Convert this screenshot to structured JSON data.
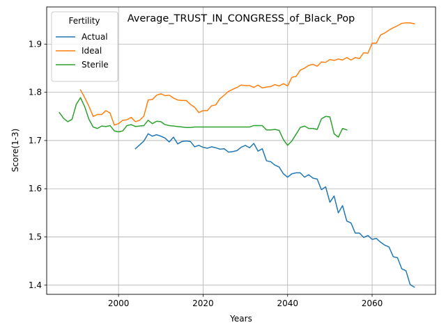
{
  "chart_data": {
    "type": "line",
    "title": "Average_TRUST_IN_CONGRESS_of_Black_Pop",
    "xlabel": "Years",
    "ylabel": "Score(1-3)",
    "xlim": [
      1983,
      2075
    ],
    "ylim": [
      1.381,
      1.977
    ],
    "xticks": [
      2000,
      2020,
      2040,
      2060
    ],
    "yticks": [
      1.4,
      1.5,
      1.6,
      1.7,
      1.8,
      1.9
    ],
    "grid": true,
    "legend": {
      "title": "Fertility",
      "placement": "top-left"
    },
    "series": [
      {
        "name": "Actual",
        "color": "#1f77b4",
        "points": [
          [
            2004,
            1.683
          ],
          [
            2005,
            1.691
          ],
          [
            2006,
            1.699
          ],
          [
            2007,
            1.714
          ],
          [
            2008,
            1.709
          ],
          [
            2009,
            1.712
          ],
          [
            2010,
            1.709
          ],
          [
            2011,
            1.705
          ],
          [
            2012,
            1.697
          ],
          [
            2013,
            1.707
          ],
          [
            2014,
            1.693
          ],
          [
            2015,
            1.698
          ],
          [
            2016,
            1.699
          ],
          [
            2017,
            1.698
          ],
          [
            2018,
            1.687
          ],
          [
            2019,
            1.69
          ],
          [
            2020,
            1.686
          ],
          [
            2021,
            1.684
          ],
          [
            2022,
            1.687
          ],
          [
            2023,
            1.685
          ],
          [
            2024,
            1.682
          ],
          [
            2025,
            1.683
          ],
          [
            2026,
            1.676
          ],
          [
            2027,
            1.677
          ],
          [
            2028,
            1.679
          ],
          [
            2029,
            1.686
          ],
          [
            2030,
            1.69
          ],
          [
            2031,
            1.685
          ],
          [
            2032,
            1.694
          ],
          [
            2033,
            1.678
          ],
          [
            2034,
            1.683
          ],
          [
            2035,
            1.658
          ],
          [
            2036,
            1.656
          ],
          [
            2037,
            1.649
          ],
          [
            2038,
            1.645
          ],
          [
            2039,
            1.631
          ],
          [
            2040,
            1.624
          ],
          [
            2041,
            1.631
          ],
          [
            2042,
            1.633
          ],
          [
            2043,
            1.633
          ],
          [
            2044,
            1.624
          ],
          [
            2045,
            1.629
          ],
          [
            2046,
            1.622
          ],
          [
            2047,
            1.62
          ],
          [
            2048,
            1.598
          ],
          [
            2049,
            1.604
          ],
          [
            2050,
            1.572
          ],
          [
            2051,
            1.585
          ],
          [
            2052,
            1.55
          ],
          [
            2053,
            1.565
          ],
          [
            2054,
            1.533
          ],
          [
            2055,
            1.529
          ],
          [
            2056,
            1.508
          ],
          [
            2057,
            1.508
          ],
          [
            2058,
            1.499
          ],
          [
            2059,
            1.503
          ],
          [
            2060,
            1.495
          ],
          [
            2061,
            1.497
          ],
          [
            2062,
            1.489
          ],
          [
            2063,
            1.483
          ],
          [
            2064,
            1.479
          ],
          [
            2065,
            1.459
          ],
          [
            2066,
            1.457
          ],
          [
            2067,
            1.434
          ],
          [
            2068,
            1.43
          ],
          [
            2069,
            1.401
          ],
          [
            2070,
            1.396
          ]
        ]
      },
      {
        "name": "Ideal",
        "color": "#ff7f0e",
        "points": [
          [
            1991,
            1.805
          ],
          [
            1992,
            1.789
          ],
          [
            1993,
            1.771
          ],
          [
            1994,
            1.75
          ],
          [
            1995,
            1.754
          ],
          [
            1996,
            1.754
          ],
          [
            1997,
            1.762
          ],
          [
            1998,
            1.757
          ],
          [
            1999,
            1.732
          ],
          [
            2000,
            1.735
          ],
          [
            2001,
            1.742
          ],
          [
            2002,
            1.743
          ],
          [
            2003,
            1.748
          ],
          [
            2004,
            1.739
          ],
          [
            2005,
            1.742
          ],
          [
            2006,
            1.751
          ],
          [
            2007,
            1.784
          ],
          [
            2008,
            1.785
          ],
          [
            2009,
            1.794
          ],
          [
            2010,
            1.797
          ],
          [
            2011,
            1.793
          ],
          [
            2012,
            1.794
          ],
          [
            2013,
            1.788
          ],
          [
            2014,
            1.784
          ],
          [
            2015,
            1.783
          ],
          [
            2016,
            1.783
          ],
          [
            2017,
            1.775
          ],
          [
            2018,
            1.769
          ],
          [
            2019,
            1.758
          ],
          [
            2020,
            1.762
          ],
          [
            2021,
            1.762
          ],
          [
            2022,
            1.772
          ],
          [
            2023,
            1.774
          ],
          [
            2024,
            1.787
          ],
          [
            2025,
            1.794
          ],
          [
            2026,
            1.802
          ],
          [
            2027,
            1.806
          ],
          [
            2028,
            1.81
          ],
          [
            2029,
            1.815
          ],
          [
            2030,
            1.814
          ],
          [
            2031,
            1.814
          ],
          [
            2032,
            1.81
          ],
          [
            2033,
            1.815
          ],
          [
            2034,
            1.809
          ],
          [
            2035,
            1.811
          ],
          [
            2036,
            1.812
          ],
          [
            2037,
            1.816
          ],
          [
            2038,
            1.813
          ],
          [
            2039,
            1.818
          ],
          [
            2040,
            1.813
          ],
          [
            2041,
            1.831
          ],
          [
            2042,
            1.833
          ],
          [
            2043,
            1.846
          ],
          [
            2044,
            1.85
          ],
          [
            2045,
            1.856
          ],
          [
            2046,
            1.858
          ],
          [
            2047,
            1.854
          ],
          [
            2048,
            1.863
          ],
          [
            2049,
            1.862
          ],
          [
            2050,
            1.868
          ],
          [
            2051,
            1.866
          ],
          [
            2052,
            1.869
          ],
          [
            2053,
            1.867
          ],
          [
            2054,
            1.872
          ],
          [
            2055,
            1.867
          ],
          [
            2056,
            1.872
          ],
          [
            2057,
            1.87
          ],
          [
            2058,
            1.882
          ],
          [
            2059,
            1.881
          ],
          [
            2060,
            1.902
          ],
          [
            2061,
            1.902
          ],
          [
            2062,
            1.919
          ],
          [
            2063,
            1.923
          ],
          [
            2064,
            1.929
          ],
          [
            2065,
            1.934
          ],
          [
            2066,
            1.938
          ],
          [
            2067,
            1.943
          ],
          [
            2068,
            1.944
          ],
          [
            2069,
            1.944
          ],
          [
            2070,
            1.942
          ]
        ]
      },
      {
        "name": "Sterile",
        "color": "#2ca02c",
        "points": [
          [
            1986,
            1.758
          ],
          [
            1987,
            1.746
          ],
          [
            1988,
            1.739
          ],
          [
            1989,
            1.744
          ],
          [
            1990,
            1.775
          ],
          [
            1991,
            1.789
          ],
          [
            1992,
            1.77
          ],
          [
            1993,
            1.744
          ],
          [
            1994,
            1.728
          ],
          [
            1995,
            1.725
          ],
          [
            1996,
            1.73
          ],
          [
            1997,
            1.729
          ],
          [
            1998,
            1.731
          ],
          [
            1999,
            1.72
          ],
          [
            2000,
            1.718
          ],
          [
            2001,
            1.72
          ],
          [
            2002,
            1.731
          ],
          [
            2003,
            1.733
          ],
          [
            2004,
            1.729
          ],
          [
            2005,
            1.73
          ],
          [
            2006,
            1.731
          ],
          [
            2007,
            1.742
          ],
          [
            2008,
            1.735
          ],
          [
            2009,
            1.74
          ],
          [
            2010,
            1.739
          ],
          [
            2011,
            1.733
          ],
          [
            2012,
            1.731
          ],
          [
            2013,
            1.73
          ],
          [
            2014,
            1.729
          ],
          [
            2015,
            1.728
          ],
          [
            2016,
            1.727
          ],
          [
            2017,
            1.727
          ],
          [
            2018,
            1.728
          ],
          [
            2019,
            1.728
          ],
          [
            2020,
            1.728
          ],
          [
            2021,
            1.728
          ],
          [
            2022,
            1.728
          ],
          [
            2023,
            1.728
          ],
          [
            2024,
            1.728
          ],
          [
            2025,
            1.728
          ],
          [
            2026,
            1.728
          ],
          [
            2027,
            1.728
          ],
          [
            2028,
            1.728
          ],
          [
            2029,
            1.728
          ],
          [
            2030,
            1.728
          ],
          [
            2031,
            1.728
          ],
          [
            2032,
            1.731
          ],
          [
            2033,
            1.731
          ],
          [
            2034,
            1.731
          ],
          [
            2035,
            1.722
          ],
          [
            2036,
            1.722
          ],
          [
            2037,
            1.723
          ],
          [
            2038,
            1.721
          ],
          [
            2039,
            1.702
          ],
          [
            2040,
            1.69
          ],
          [
            2041,
            1.699
          ],
          [
            2042,
            1.713
          ],
          [
            2043,
            1.727
          ],
          [
            2044,
            1.73
          ],
          [
            2045,
            1.725
          ],
          [
            2046,
            1.725
          ],
          [
            2047,
            1.723
          ],
          [
            2048,
            1.745
          ],
          [
            2049,
            1.75
          ],
          [
            2050,
            1.749
          ],
          [
            2051,
            1.714
          ],
          [
            2052,
            1.707
          ],
          [
            2053,
            1.725
          ],
          [
            2054,
            1.722
          ]
        ]
      }
    ]
  }
}
